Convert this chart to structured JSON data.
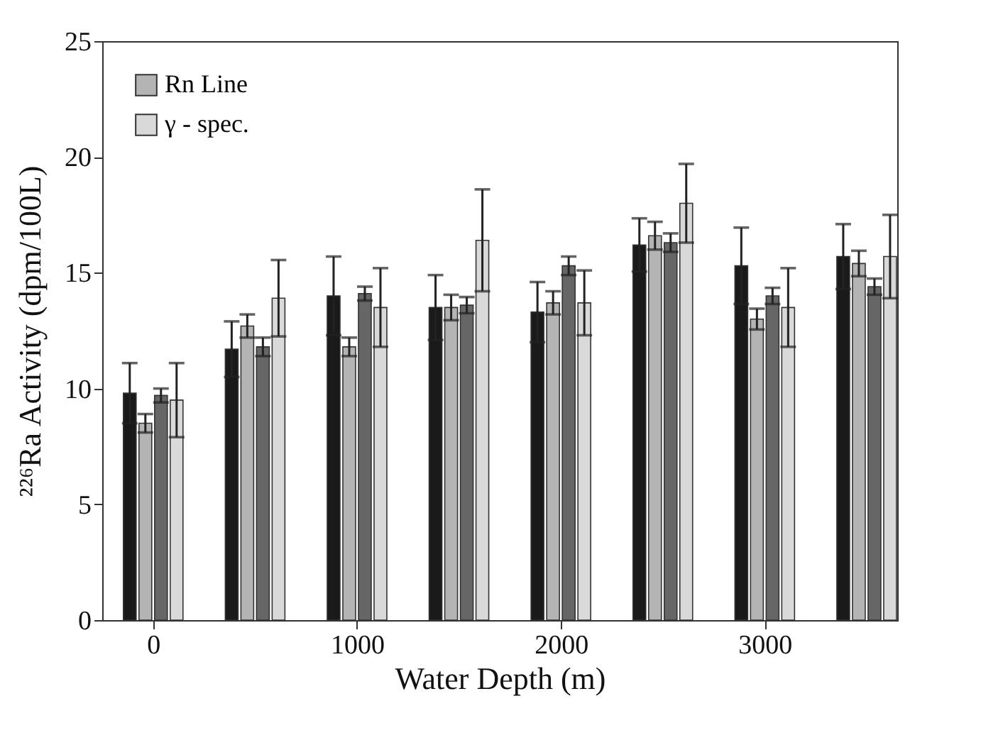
{
  "chart_data": {
    "type": "bar",
    "xlabel": "Water Depth (m)",
    "ylabel": "²²⁶Ra Activity (dpm/100L)",
    "x": [
      0,
      500,
      1000,
      1500,
      2000,
      2500,
      3000,
      3500
    ],
    "xlim": [
      -250,
      3650
    ],
    "xticks": [
      0,
      1000,
      2000,
      3000
    ],
    "ylim": [
      0,
      25
    ],
    "yticks": [
      0,
      5,
      10,
      15,
      20,
      25
    ],
    "grid": false,
    "legend": "top left",
    "series": [
      {
        "color": "#1a1a1a",
        "values": [
          9.8,
          11.7,
          14.0,
          13.5,
          13.3,
          16.2,
          15.3,
          15.7
        ],
        "errors": [
          1.3,
          1.2,
          1.7,
          1.4,
          1.3,
          1.15,
          1.65,
          1.4
        ]
      },
      {
        "name": "Rn Line",
        "color": "#b4b4b4",
        "values": [
          8.5,
          12.7,
          11.8,
          13.5,
          13.7,
          16.6,
          13.0,
          15.4
        ],
        "errors": [
          0.4,
          0.5,
          0.4,
          0.55,
          0.5,
          0.6,
          0.45,
          0.55
        ]
      },
      {
        "color": "#666666",
        "values": [
          9.7,
          11.8,
          14.1,
          13.6,
          15.3,
          16.3,
          14.0,
          14.4
        ],
        "errors": [
          0.3,
          0.4,
          0.3,
          0.35,
          0.4,
          0.4,
          0.35,
          0.35
        ]
      },
      {
        "name": "γ - spec.",
        "color": "#d9d9d9",
        "values": [
          9.5,
          13.9,
          13.5,
          16.4,
          13.7,
          18.0,
          13.5,
          15.7
        ],
        "errors": [
          1.6,
          1.65,
          1.7,
          2.2,
          1.4,
          1.7,
          1.7,
          1.8
        ]
      }
    ]
  }
}
